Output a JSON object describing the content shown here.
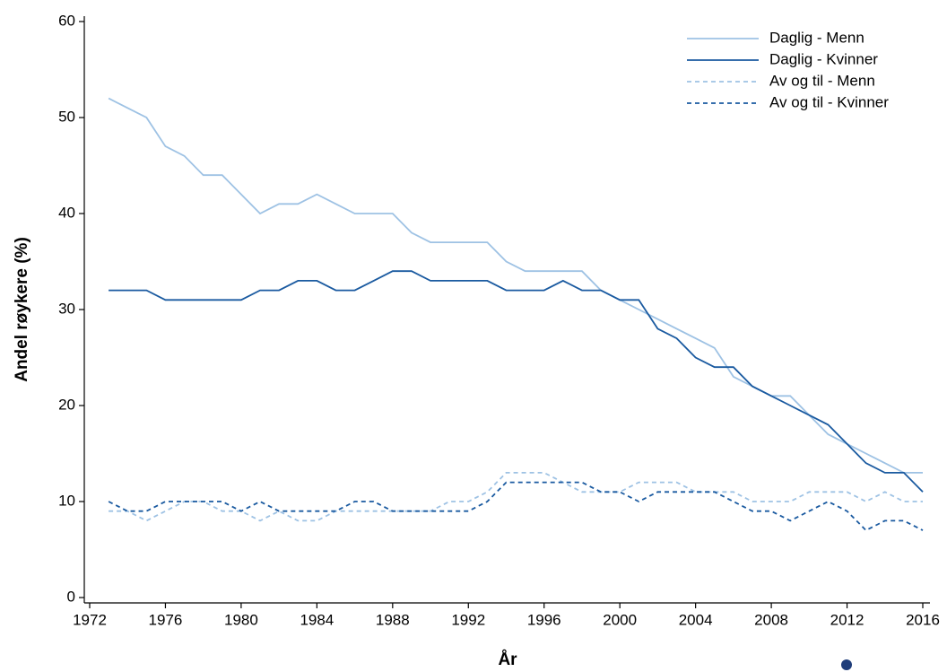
{
  "chart_data": {
    "type": "line",
    "xlabel": "År",
    "ylabel": "Andel røykere (%)",
    "x": [
      1973,
      1974,
      1975,
      1976,
      1977,
      1978,
      1979,
      1980,
      1981,
      1982,
      1983,
      1984,
      1985,
      1986,
      1987,
      1988,
      1989,
      1990,
      1991,
      1992,
      1993,
      1994,
      1995,
      1996,
      1997,
      1998,
      1999,
      2000,
      2001,
      2002,
      2003,
      2004,
      2005,
      2006,
      2007,
      2008,
      2009,
      2010,
      2011,
      2012,
      2013,
      2014,
      2015,
      2016
    ],
    "series": [
      {
        "name": "Daglig - Menn",
        "color": "#9ec2e4",
        "dash": false,
        "values": [
          52,
          51,
          50,
          47,
          46,
          44,
          44,
          42,
          40,
          41,
          41,
          42,
          41,
          40,
          40,
          40,
          38,
          37,
          37,
          37,
          37,
          35,
          34,
          34,
          34,
          34,
          32,
          31,
          30,
          29,
          28,
          27,
          26,
          23,
          22,
          21,
          21,
          19,
          17,
          16,
          15,
          14,
          13,
          13
        ]
      },
      {
        "name": "Daglig - Kvinner",
        "color": "#1a5aa0",
        "dash": false,
        "values": [
          32,
          32,
          32,
          31,
          31,
          31,
          31,
          31,
          32,
          32,
          33,
          33,
          32,
          32,
          33,
          34,
          34,
          33,
          33,
          33,
          33,
          32,
          32,
          32,
          33,
          32,
          32,
          31,
          31,
          28,
          27,
          25,
          24,
          24,
          22,
          21,
          20,
          19,
          18,
          16,
          14,
          13,
          13,
          11
        ]
      },
      {
        "name": "Av og til - Menn",
        "color": "#9ec2e4",
        "dash": true,
        "values": [
          9,
          9,
          8,
          9,
          10,
          10,
          9,
          9,
          8,
          9,
          8,
          8,
          9,
          9,
          9,
          9,
          9,
          9,
          10,
          10,
          11,
          13,
          13,
          13,
          12,
          11,
          11,
          11,
          12,
          12,
          12,
          11,
          11,
          11,
          10,
          10,
          10,
          11,
          11,
          11,
          10,
          11,
          10,
          10
        ]
      },
      {
        "name": "Av og til - Kvinner",
        "color": "#1a5aa0",
        "dash": true,
        "values": [
          10,
          9,
          9,
          10,
          10,
          10,
          10,
          9,
          10,
          9,
          9,
          9,
          9,
          10,
          10,
          9,
          9,
          9,
          9,
          9,
          10,
          12,
          12,
          12,
          12,
          12,
          11,
          11,
          10,
          11,
          11,
          11,
          11,
          10,
          9,
          9,
          8,
          9,
          10,
          9,
          7,
          8,
          8,
          7
        ]
      }
    ],
    "xlim": [
      1972,
      2016
    ],
    "xticks": [
      1972,
      1976,
      1980,
      1984,
      1988,
      1992,
      1996,
      2000,
      2004,
      2008,
      2012,
      2016
    ],
    "ylim": [
      0,
      60
    ],
    "yticks": [
      0,
      10,
      20,
      30,
      40,
      50,
      60
    ],
    "legend": "upper right",
    "grid": false
  }
}
